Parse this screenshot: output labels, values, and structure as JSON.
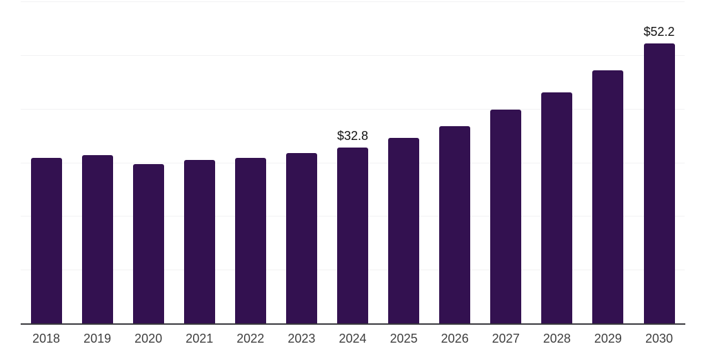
{
  "chart_data": {
    "type": "bar",
    "title": "",
    "xlabel": "",
    "ylabel": "",
    "categories": [
      "2018",
      "2019",
      "2020",
      "2021",
      "2022",
      "2023",
      "2024",
      "2025",
      "2026",
      "2027",
      "2028",
      "2029",
      "2030"
    ],
    "values": [
      30.8,
      31.3,
      29.7,
      30.5,
      30.9,
      31.7,
      32.8,
      34.6,
      36.8,
      39.8,
      43.0,
      47.1,
      52.2
    ],
    "data_labels": {
      "2024": "$32.8",
      "2030": "$52.2"
    },
    "value_prefix": "$",
    "ylim": [
      0,
      60
    ],
    "gridline_step": 10,
    "grid": "horizontal-only",
    "legend": "none",
    "y_axis_tick_labels": "none",
    "colors": {
      "bar": "#331150",
      "gridline": "#f2f2f3",
      "axis_line": "#38383d",
      "tick_label": "#3e3e3e",
      "data_label": "#111111",
      "background": "#ffffff"
    }
  }
}
